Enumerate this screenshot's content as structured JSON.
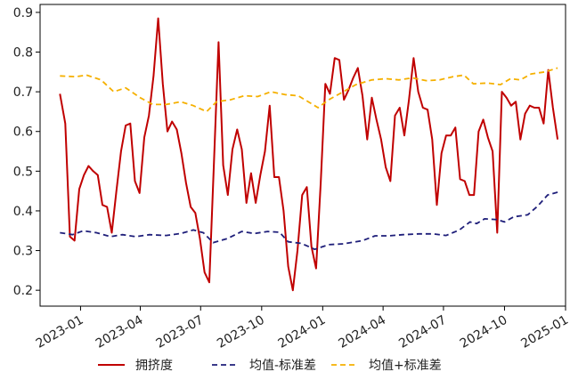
{
  "chart_data": {
    "type": "line",
    "title": "",
    "xlabel": "",
    "ylabel": "",
    "grid": false,
    "legend_position": "bottom",
    "x_ticks": [
      "2023-01",
      "2023-04",
      "2023-07",
      "2023-10",
      "2024-01",
      "2024-04",
      "2024-07",
      "2024-10",
      "2025-01"
    ],
    "x_range": [
      "2022-11-01",
      "2025-01-01"
    ],
    "y_ticks": [
      0.2,
      0.3,
      0.4,
      0.5,
      0.6,
      0.7,
      0.8,
      0.9
    ],
    "ylim": [
      0.16,
      0.92
    ],
    "series": [
      {
        "name": "拥挤度",
        "color": "#c00000",
        "style": "solid",
        "points": [
          [
            "2022-12-01",
            0.695
          ],
          [
            "2022-12-09",
            0.62
          ],
          [
            "2022-12-16",
            0.335
          ],
          [
            "2022-12-23",
            0.325
          ],
          [
            "2022-12-30",
            0.455
          ],
          [
            "2023-01-06",
            0.49
          ],
          [
            "2023-01-13",
            0.513
          ],
          [
            "2023-01-20",
            0.5
          ],
          [
            "2023-01-27",
            0.49
          ],
          [
            "2023-02-03",
            0.415
          ],
          [
            "2023-02-10",
            0.41
          ],
          [
            "2023-02-17",
            0.345
          ],
          [
            "2023-02-24",
            0.45
          ],
          [
            "2023-03-03",
            0.55
          ],
          [
            "2023-03-10",
            0.615
          ],
          [
            "2023-03-17",
            0.62
          ],
          [
            "2023-03-24",
            0.475
          ],
          [
            "2023-03-31",
            0.445
          ],
          [
            "2023-04-07",
            0.585
          ],
          [
            "2023-04-14",
            0.64
          ],
          [
            "2023-04-21",
            0.74
          ],
          [
            "2023-04-28",
            0.885
          ],
          [
            "2023-05-05",
            0.72
          ],
          [
            "2023-05-12",
            0.6
          ],
          [
            "2023-05-19",
            0.625
          ],
          [
            "2023-05-26",
            0.605
          ],
          [
            "2023-06-02",
            0.545
          ],
          [
            "2023-06-09",
            0.47
          ],
          [
            "2023-06-16",
            0.41
          ],
          [
            "2023-06-23",
            0.395
          ],
          [
            "2023-06-30",
            0.33
          ],
          [
            "2023-07-07",
            0.245
          ],
          [
            "2023-07-14",
            0.22
          ],
          [
            "2023-07-21",
            0.52
          ],
          [
            "2023-07-28",
            0.825
          ],
          [
            "2023-08-04",
            0.515
          ],
          [
            "2023-08-11",
            0.44
          ],
          [
            "2023-08-18",
            0.555
          ],
          [
            "2023-08-25",
            0.605
          ],
          [
            "2023-09-01",
            0.555
          ],
          [
            "2023-09-08",
            0.42
          ],
          [
            "2023-09-15",
            0.495
          ],
          [
            "2023-09-22",
            0.42
          ],
          [
            "2023-09-29",
            0.49
          ],
          [
            "2023-10-06",
            0.55
          ],
          [
            "2023-10-13",
            0.665
          ],
          [
            "2023-10-20",
            0.485
          ],
          [
            "2023-10-27",
            0.485
          ],
          [
            "2023-11-03",
            0.4
          ],
          [
            "2023-11-10",
            0.26
          ],
          [
            "2023-11-17",
            0.2
          ],
          [
            "2023-11-24",
            0.3
          ],
          [
            "2023-12-01",
            0.44
          ],
          [
            "2023-12-08",
            0.46
          ],
          [
            "2023-12-15",
            0.31
          ],
          [
            "2023-12-22",
            0.255
          ],
          [
            "2023-12-29",
            0.47
          ],
          [
            "2024-01-05",
            0.72
          ],
          [
            "2024-01-12",
            0.695
          ],
          [
            "2024-01-19",
            0.785
          ],
          [
            "2024-01-26",
            0.78
          ],
          [
            "2024-02-02",
            0.68
          ],
          [
            "2024-02-09",
            0.705
          ],
          [
            "2024-02-16",
            0.735
          ],
          [
            "2024-02-23",
            0.76
          ],
          [
            "2024-03-01",
            0.69
          ],
          [
            "2024-03-08",
            0.58
          ],
          [
            "2024-03-15",
            0.685
          ],
          [
            "2024-03-22",
            0.63
          ],
          [
            "2024-03-29",
            0.58
          ],
          [
            "2024-04-05",
            0.51
          ],
          [
            "2024-04-12",
            0.475
          ],
          [
            "2024-04-19",
            0.64
          ],
          [
            "2024-04-26",
            0.66
          ],
          [
            "2024-05-03",
            0.59
          ],
          [
            "2024-05-10",
            0.68
          ],
          [
            "2024-05-17",
            0.785
          ],
          [
            "2024-05-24",
            0.7
          ],
          [
            "2024-05-31",
            0.66
          ],
          [
            "2024-06-07",
            0.655
          ],
          [
            "2024-06-14",
            0.58
          ],
          [
            "2024-06-21",
            0.415
          ],
          [
            "2024-06-28",
            0.545
          ],
          [
            "2024-07-05",
            0.59
          ],
          [
            "2024-07-12",
            0.59
          ],
          [
            "2024-07-19",
            0.61
          ],
          [
            "2024-07-26",
            0.48
          ],
          [
            "2024-08-02",
            0.475
          ],
          [
            "2024-08-09",
            0.44
          ],
          [
            "2024-08-16",
            0.44
          ],
          [
            "2024-08-23",
            0.6
          ],
          [
            "2024-08-30",
            0.63
          ],
          [
            "2024-09-06",
            0.585
          ],
          [
            "2024-09-13",
            0.55
          ],
          [
            "2024-09-20",
            0.345
          ],
          [
            "2024-09-27",
            0.7
          ],
          [
            "2024-10-04",
            0.685
          ],
          [
            "2024-10-11",
            0.665
          ],
          [
            "2024-10-18",
            0.675
          ],
          [
            "2024-10-25",
            0.58
          ],
          [
            "2024-11-01",
            0.645
          ],
          [
            "2024-11-08",
            0.665
          ],
          [
            "2024-11-15",
            0.66
          ],
          [
            "2024-11-22",
            0.66
          ],
          [
            "2024-11-29",
            0.62
          ],
          [
            "2024-12-06",
            0.755
          ],
          [
            "2024-12-13",
            0.66
          ],
          [
            "2024-12-20",
            0.58
          ]
        ]
      },
      {
        "name": "均值-标准差",
        "color": "#1f1f7a",
        "style": "dashed",
        "points": [
          [
            "2022-12-01",
            0.345
          ],
          [
            "2022-12-20",
            0.34
          ],
          [
            "2023-01-05",
            0.35
          ],
          [
            "2023-01-25",
            0.345
          ],
          [
            "2023-02-15",
            0.335
          ],
          [
            "2023-03-05",
            0.34
          ],
          [
            "2023-03-25",
            0.335
          ],
          [
            "2023-04-15",
            0.34
          ],
          [
            "2023-05-10",
            0.338
          ],
          [
            "2023-06-01",
            0.343
          ],
          [
            "2023-06-20",
            0.352
          ],
          [
            "2023-07-05",
            0.345
          ],
          [
            "2023-07-20",
            0.32
          ],
          [
            "2023-08-10",
            0.33
          ],
          [
            "2023-09-01",
            0.348
          ],
          [
            "2023-09-20",
            0.343
          ],
          [
            "2023-10-10",
            0.348
          ],
          [
            "2023-10-28",
            0.346
          ],
          [
            "2023-11-10",
            0.322
          ],
          [
            "2023-11-30",
            0.318
          ],
          [
            "2023-12-20",
            0.303
          ],
          [
            "2024-01-10",
            0.315
          ],
          [
            "2024-02-01",
            0.317
          ],
          [
            "2024-03-01",
            0.325
          ],
          [
            "2024-03-20",
            0.337
          ],
          [
            "2024-04-10",
            0.337
          ],
          [
            "2024-05-01",
            0.34
          ],
          [
            "2024-05-25",
            0.342
          ],
          [
            "2024-06-15",
            0.342
          ],
          [
            "2024-07-05",
            0.338
          ],
          [
            "2024-07-25",
            0.352
          ],
          [
            "2024-08-10",
            0.372
          ],
          [
            "2024-08-20",
            0.368
          ],
          [
            "2024-09-01",
            0.38
          ],
          [
            "2024-09-20",
            0.378
          ],
          [
            "2024-10-01",
            0.372
          ],
          [
            "2024-10-15",
            0.385
          ],
          [
            "2024-11-05",
            0.39
          ],
          [
            "2024-11-20",
            0.412
          ],
          [
            "2024-12-05",
            0.44
          ],
          [
            "2024-12-20",
            0.447
          ]
        ]
      },
      {
        "name": "均值+标准差",
        "color": "#f5b000",
        "style": "dashed",
        "points": [
          [
            "2022-12-01",
            0.74
          ],
          [
            "2022-12-25",
            0.738
          ],
          [
            "2023-01-10",
            0.742
          ],
          [
            "2023-02-01",
            0.73
          ],
          [
            "2023-02-20",
            0.7
          ],
          [
            "2023-03-10",
            0.71
          ],
          [
            "2023-04-01",
            0.685
          ],
          [
            "2023-04-20",
            0.668
          ],
          [
            "2023-05-10",
            0.668
          ],
          [
            "2023-06-01",
            0.675
          ],
          [
            "2023-06-20",
            0.665
          ],
          [
            "2023-07-10",
            0.65
          ],
          [
            "2023-07-25",
            0.675
          ],
          [
            "2023-08-15",
            0.68
          ],
          [
            "2023-09-05",
            0.69
          ],
          [
            "2023-09-25",
            0.688
          ],
          [
            "2023-10-15",
            0.7
          ],
          [
            "2023-11-05",
            0.693
          ],
          [
            "2023-11-25",
            0.69
          ],
          [
            "2023-12-15",
            0.67
          ],
          [
            "2023-12-25",
            0.66
          ],
          [
            "2024-01-10",
            0.68
          ],
          [
            "2024-02-01",
            0.7
          ],
          [
            "2024-02-20",
            0.718
          ],
          [
            "2024-03-15",
            0.73
          ],
          [
            "2024-04-05",
            0.733
          ],
          [
            "2024-04-25",
            0.73
          ],
          [
            "2024-05-15",
            0.735
          ],
          [
            "2024-06-05",
            0.728
          ],
          [
            "2024-06-25",
            0.73
          ],
          [
            "2024-07-15",
            0.738
          ],
          [
            "2024-08-01",
            0.742
          ],
          [
            "2024-08-15",
            0.72
          ],
          [
            "2024-09-05",
            0.722
          ],
          [
            "2024-09-25",
            0.718
          ],
          [
            "2024-10-10",
            0.733
          ],
          [
            "2024-10-25",
            0.73
          ],
          [
            "2024-11-10",
            0.745
          ],
          [
            "2024-12-01",
            0.75
          ],
          [
            "2024-12-20",
            0.76
          ]
        ]
      }
    ]
  }
}
